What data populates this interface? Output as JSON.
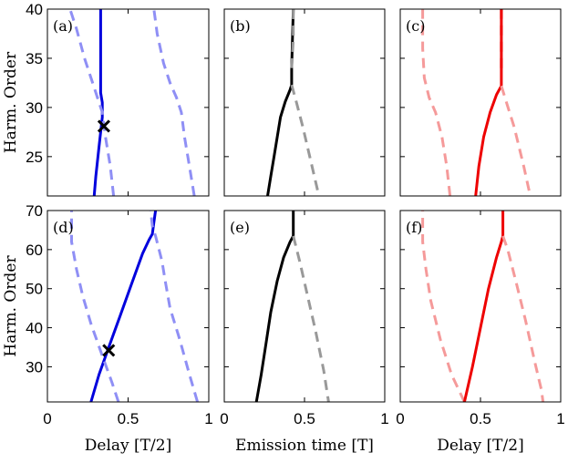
{
  "chart_data": {
    "type": "line",
    "rows": [
      {
        "ylabel": "Harm. Order",
        "ylim": [
          21,
          40
        ],
        "yticks": [
          25,
          30,
          35,
          40
        ]
      },
      {
        "ylabel": "Harm. Order",
        "ylim": [
          21,
          70
        ],
        "yticks": [
          30,
          40,
          50,
          60,
          70
        ]
      }
    ],
    "xticks": {
      "labels": [
        "0",
        "0.5",
        "1"
      ],
      "values": [
        0,
        0.5,
        1
      ]
    },
    "xlim": [
      0,
      1
    ],
    "column_xlabels": [
      "Delay [T/2]",
      "Emission time [T]",
      "Delay [T/2]"
    ],
    "colors": {
      "blue": "#0000dd",
      "light_blue": "#8f8ff5",
      "black": "#000000",
      "gray": "#999999",
      "red": "#ee0000",
      "light_red": "#f59a9a"
    },
    "panels": [
      {
        "label": "(a)",
        "row": 0,
        "col": 0,
        "series": [
          {
            "name": "solid",
            "color": "blue",
            "dash": false,
            "points": [
              [
                0.29,
                21
              ],
              [
                0.3,
                23
              ],
              [
                0.32,
                26
              ],
              [
                0.34,
                29
              ],
              [
                0.34,
                30.5
              ],
              [
                0.33,
                31.5
              ],
              [
                0.33,
                34
              ],
              [
                0.33,
                37
              ],
              [
                0.33,
                40
              ]
            ]
          },
          {
            "name": "dashed-left",
            "color": "light_blue",
            "dash": true,
            "points": [
              [
                0.41,
                21
              ],
              [
                0.39,
                24
              ],
              [
                0.36,
                27
              ],
              [
                0.34,
                29.5
              ],
              [
                0.31,
                31
              ],
              [
                0.28,
                32.5
              ],
              [
                0.23,
                35
              ],
              [
                0.18,
                38
              ],
              [
                0.14,
                40
              ]
            ]
          },
          {
            "name": "dashed-right",
            "color": "light_blue",
            "dash": true,
            "points": [
              [
                0.91,
                21
              ],
              [
                0.88,
                24
              ],
              [
                0.85,
                27
              ],
              [
                0.83,
                29.5
              ],
              [
                0.8,
                31
              ],
              [
                0.76,
                32.5
              ],
              [
                0.72,
                34.5
              ],
              [
                0.68,
                37.5
              ],
              [
                0.66,
                40
              ]
            ]
          }
        ],
        "markers": [
          {
            "x": 0.35,
            "y": 28.1,
            "symbol": "x"
          }
        ]
      },
      {
        "label": "(b)",
        "row": 0,
        "col": 1,
        "series": [
          {
            "name": "solid",
            "color": "black",
            "dash": false,
            "points": [
              [
                0.27,
                21
              ],
              [
                0.29,
                23
              ],
              [
                0.31,
                25
              ],
              [
                0.33,
                27
              ],
              [
                0.35,
                29
              ],
              [
                0.38,
                30.6
              ],
              [
                0.41,
                31.8
              ],
              [
                0.42,
                32.3
              ],
              [
                0.42,
                34
              ],
              [
                0.43,
                40
              ]
            ]
          },
          {
            "name": "dashed",
            "color": "gray",
            "dash": true,
            "points": [
              [
                0.42,
                32.3
              ],
              [
                0.45,
                30.5
              ],
              [
                0.49,
                28
              ],
              [
                0.54,
                24.5
              ],
              [
                0.59,
                21
              ]
            ]
          },
          {
            "name": "dashed-top",
            "color": "gray",
            "dash": true,
            "points": [
              [
                0.43,
                40
              ],
              [
                0.43,
                37
              ],
              [
                0.42,
                34
              ]
            ]
          }
        ]
      },
      {
        "label": "(c)",
        "row": 0,
        "col": 2,
        "series": [
          {
            "name": "dashed-left",
            "color": "light_red",
            "dash": true,
            "points": [
              [
                0.31,
                21
              ],
              [
                0.29,
                24
              ],
              [
                0.26,
                27
              ],
              [
                0.22,
                29.5
              ],
              [
                0.18,
                31
              ],
              [
                0.15,
                33
              ],
              [
                0.14,
                36
              ],
              [
                0.14,
                40
              ]
            ]
          },
          {
            "name": "solid",
            "color": "red",
            "dash": false,
            "points": [
              [
                0.47,
                21
              ],
              [
                0.49,
                24
              ],
              [
                0.52,
                27
              ],
              [
                0.56,
                29.5
              ],
              [
                0.6,
                31.3
              ],
              [
                0.63,
                32.2
              ],
              [
                0.63,
                34
              ],
              [
                0.63,
                40
              ]
            ]
          },
          {
            "name": "dashed-right",
            "color": "light_red",
            "dash": true,
            "points": [
              [
                0.63,
                32.2
              ],
              [
                0.66,
                30.6
              ],
              [
                0.71,
                28
              ],
              [
                0.77,
                24
              ],
              [
                0.81,
                21
              ]
            ]
          },
          {
            "name": "dashed-top",
            "color": "red",
            "dash": true,
            "points": [
              [
                0.63,
                34
              ],
              [
                0.63,
                37
              ],
              [
                0.63,
                40
              ]
            ]
          }
        ]
      },
      {
        "label": "(d)",
        "row": 1,
        "col": 0,
        "series": [
          {
            "name": "solid",
            "color": "blue",
            "dash": false,
            "points": [
              [
                0.27,
                21
              ],
              [
                0.32,
                28
              ],
              [
                0.38,
                35
              ],
              [
                0.45,
                43
              ],
              [
                0.52,
                51
              ],
              [
                0.59,
                59
              ],
              [
                0.63,
                62.5
              ],
              [
                0.65,
                64
              ],
              [
                0.66,
                67
              ],
              [
                0.67,
                70
              ]
            ]
          },
          {
            "name": "dashed-left",
            "color": "light_blue",
            "dash": true,
            "points": [
              [
                0.44,
                21
              ],
              [
                0.4,
                26
              ],
              [
                0.33,
                34
              ],
              [
                0.27,
                41
              ],
              [
                0.22,
                48
              ],
              [
                0.18,
                55
              ],
              [
                0.15,
                62
              ],
              [
                0.15,
                70
              ]
            ]
          },
          {
            "name": "dashed-right",
            "color": "light_blue",
            "dash": true,
            "points": [
              [
                0.93,
                21
              ],
              [
                0.88,
                28
              ],
              [
                0.82,
                37
              ],
              [
                0.76,
                45
              ],
              [
                0.73,
                52
              ],
              [
                0.71,
                57
              ],
              [
                0.67,
                63.5
              ],
              [
                0.65,
                66
              ],
              [
                0.64,
                70
              ]
            ]
          }
        ],
        "markers": [
          {
            "x": 0.38,
            "y": 34.2,
            "symbol": "x"
          }
        ]
      },
      {
        "label": "(e)",
        "row": 1,
        "col": 1,
        "series": [
          {
            "name": "solid",
            "color": "black",
            "dash": false,
            "points": [
              [
                0.2,
                21
              ],
              [
                0.23,
                28
              ],
              [
                0.26,
                36
              ],
              [
                0.29,
                44
              ],
              [
                0.33,
                52
              ],
              [
                0.37,
                58
              ],
              [
                0.41,
                62
              ],
              [
                0.43,
                63.5
              ],
              [
                0.43,
                70
              ]
            ]
          },
          {
            "name": "dashed",
            "color": "gray",
            "dash": true,
            "points": [
              [
                0.43,
                63.5
              ],
              [
                0.47,
                57
              ],
              [
                0.52,
                48
              ],
              [
                0.57,
                39
              ],
              [
                0.62,
                29
              ],
              [
                0.65,
                21
              ]
            ]
          }
        ]
      },
      {
        "label": "(f)",
        "row": 1,
        "col": 2,
        "series": [
          {
            "name": "dashed-left",
            "color": "light_red",
            "dash": true,
            "points": [
              [
                0.4,
                21
              ],
              [
                0.32,
                28
              ],
              [
                0.25,
                37
              ],
              [
                0.19,
                47
              ],
              [
                0.16,
                55
              ],
              [
                0.14,
                62
              ],
              [
                0.14,
                70
              ]
            ]
          },
          {
            "name": "solid",
            "color": "red",
            "dash": false,
            "points": [
              [
                0.4,
                21
              ],
              [
                0.45,
                30
              ],
              [
                0.5,
                40
              ],
              [
                0.55,
                50
              ],
              [
                0.6,
                58
              ],
              [
                0.63,
                62
              ],
              [
                0.64,
                63.5
              ],
              [
                0.64,
                70
              ]
            ]
          },
          {
            "name": "dashed-right",
            "color": "light_red",
            "dash": true,
            "points": [
              [
                0.64,
                63.5
              ],
              [
                0.67,
                60
              ],
              [
                0.72,
                52
              ],
              [
                0.78,
                42
              ],
              [
                0.84,
                31
              ],
              [
                0.88,
                24
              ],
              [
                0.89,
                21
              ]
            ]
          }
        ]
      }
    ]
  }
}
